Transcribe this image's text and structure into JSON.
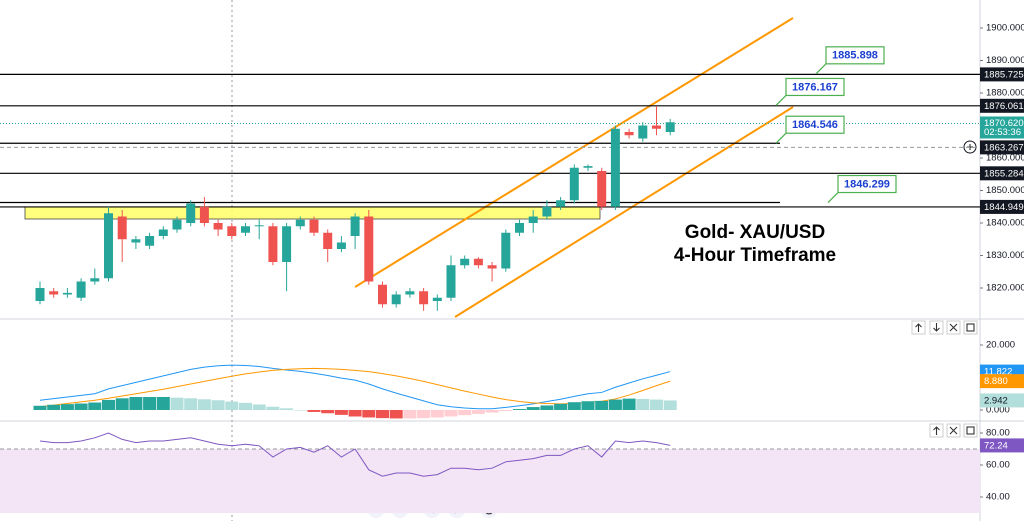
{
  "chart_data": [
    {
      "type": "candlestick",
      "open": [
        1816,
        1819,
        1818,
        1817,
        1822,
        1823,
        1842,
        1834,
        1833,
        1836,
        1838,
        1840,
        1845,
        1840,
        1839,
        1837,
        1839,
        1839,
        1828,
        1839,
        1841,
        1837,
        1832,
        1836,
        1842,
        1821,
        1815,
        1818,
        1819,
        1816,
        1817,
        1827,
        1829,
        1827,
        1826,
        1837,
        1840,
        1842,
        1845,
        1847,
        1857,
        1856,
        1845,
        1868,
        1866,
        1870,
        1868
      ],
      "high": [
        1822,
        1820,
        1820,
        1823,
        1826,
        1845,
        1844,
        1836,
        1837,
        1839,
        1842,
        1847,
        1848,
        1841,
        1840,
        1840,
        1841,
        1840,
        1840,
        1842,
        1842,
        1838,
        1836,
        1843,
        1844,
        1822,
        1819,
        1820,
        1820,
        1818,
        1830,
        1830,
        1829.5,
        1828,
        1838,
        1841,
        1844,
        1847,
        1848,
        1858,
        1858,
        1857,
        1870,
        1869,
        1871,
        1876,
        1872
      ],
      "low": [
        1815,
        1817,
        1817,
        1816,
        1821,
        1822,
        1828,
        1832,
        1832,
        1835,
        1837,
        1839,
        1839,
        1836,
        1835,
        1836,
        1835,
        1827,
        1819,
        1838,
        1836,
        1828,
        1831,
        1832,
        1821,
        1814,
        1814,
        1817,
        1813,
        1813,
        1816,
        1826,
        1826,
        1822,
        1825,
        1836,
        1837,
        1841,
        1844,
        1846,
        1856,
        1844,
        1844,
        1866,
        1865,
        1867,
        1867
      ],
      "close": [
        1820,
        1818,
        1818.5,
        1822,
        1823,
        1843,
        1835,
        1835,
        1836,
        1838,
        1841,
        1846,
        1840,
        1838,
        1836,
        1839,
        1839.3,
        1828,
        1839,
        1841,
        1837,
        1832,
        1834,
        1842,
        1822,
        1815,
        1818,
        1819,
        1815,
        1817,
        1827,
        1829,
        1827,
        1826,
        1837,
        1840,
        1842,
        1845,
        1847,
        1857,
        1857.5,
        1845,
        1869,
        1867,
        1870,
        1869,
        1871
      ],
      "up_color": "#26a69a",
      "down_color": "#ef5350",
      "ylim": [
        1810.769,
        1908.615
      ],
      "yticks": [
        {
          "value": 1900,
          "label": "1900.000"
        },
        {
          "value": 1890,
          "label": "1890.000"
        },
        {
          "value": 1880,
          "label": "1880.000"
        },
        {
          "value": 1860,
          "label": "1860.000"
        },
        {
          "value": 1850,
          "label": "1850.000"
        },
        {
          "value": 1840,
          "label": "1840.000"
        },
        {
          "value": 1830,
          "label": "1830.000"
        },
        {
          "value": 1820,
          "label": "1820.000"
        }
      ],
      "levels": [
        1885.725,
        1876.061,
        1855.284,
        1844.949
      ],
      "last_price": {
        "value": 1870.62,
        "label": "1870.620"
      },
      "countdown": "02:53:36",
      "crosshair": 1863.267,
      "callouts": [
        1885.898,
        1876.167,
        1864.546,
        1846.299
      ],
      "annotations": [
        "Gold- XAU/USD",
        "4-Hour Timeframe"
      ]
    },
    {
      "type": "macd",
      "ylim": [
        -3.08,
        27.08
      ],
      "yticks": [
        {
          "value": 20,
          "label": "20.000"
        },
        {
          "value": 0,
          "label": "0.000"
        }
      ],
      "series": [
        {
          "color": "#2196f3",
          "values": [
            3,
            3.5,
            4,
            4.5,
            5,
            6.5,
            7.5,
            8.5,
            9.5,
            10.5,
            11.5,
            12.5,
            13.2,
            13.6,
            13.8,
            13.7,
            13.4,
            12.8,
            12.3,
            11.9,
            11.3,
            10.6,
            9.8,
            9.2,
            8,
            6.5,
            5.2,
            4,
            2.8,
            1.6,
            1,
            0.6,
            0.4,
            0.4,
            0.8,
            1.3,
            1.9,
            2.6,
            3.3,
            4.2,
            5,
            5.4,
            7,
            8.3,
            9.6,
            10.7,
            11.822
          ]
        },
        {
          "color": "#ff9800",
          "values": [
            1,
            1.5,
            2,
            2.5,
            3,
            3.6,
            4.3,
            5,
            5.7,
            6.4,
            7.2,
            8,
            8.8,
            9.6,
            10.4,
            11.1,
            11.7,
            12.2,
            12.5,
            12.7,
            12.8,
            12.7,
            12.5,
            12.2,
            11.8,
            11.2,
            10.5,
            9.7,
            8.8,
            7.8,
            6.8,
            5.8,
            4.9,
            4,
            3.2,
            2.6,
            2.2,
            2,
            1.9,
            2,
            2.3,
            2.7,
            3.4,
            4.6,
            6,
            7.5,
            8.88
          ],
          "value_labels": [
            null,
            null,
            null,
            null,
            null,
            null,
            null,
            null,
            null,
            null,
            null,
            null,
            null,
            null,
            null,
            null,
            null,
            null,
            null,
            null,
            null,
            null,
            null,
            null,
            null,
            null,
            null,
            null,
            null,
            null,
            null,
            null,
            null,
            null,
            null,
            null,
            null,
            null,
            null,
            null,
            null,
            null,
            null,
            null,
            null,
            null,
            "8.880"
          ]
        },
        {
          "type": "histogram",
          "colors": [
            "#26a69a",
            "#b2dfdb",
            "#ffcdd2",
            "#ef5350"
          ],
          "values": [
            1.3,
            1.6,
            1.8,
            2,
            2.3,
            3.1,
            3.6,
            4,
            4,
            4,
            3.8,
            3.6,
            3.3,
            3,
            2.6,
            2.2,
            1.7,
            1,
            0.5,
            0,
            -0.6,
            -1,
            -1.5,
            -2,
            -2.3,
            -2.5,
            -2.6,
            -2.6,
            -2.5,
            -2.3,
            -2,
            -1.6,
            -1.2,
            -0.8,
            -0.3,
            0.3,
            0.9,
            1.4,
            1.9,
            2.4,
            2.7,
            2.8,
            3.2,
            3.5,
            3.4,
            3.2,
            2.942
          ]
        }
      ]
    },
    {
      "type": "rsi",
      "color": "#7e57c2",
      "values": [
        75,
        74,
        74,
        75,
        77,
        80,
        76,
        74,
        75,
        75,
        76,
        77,
        75,
        73,
        72,
        73,
        72,
        65,
        70,
        71,
        68,
        72,
        65,
        70,
        57,
        53,
        55,
        55,
        53,
        54,
        58,
        58,
        57,
        58,
        62,
        63,
        64,
        66,
        66,
        70,
        72,
        65,
        75,
        74,
        75,
        74,
        72.24
      ],
      "ylim": [
        25,
        86.875
      ],
      "yticks": [
        {
          "value": 80,
          "label": "80.00"
        },
        {
          "value": 60,
          "label": "60.00"
        },
        {
          "value": 40,
          "label": "40.00"
        }
      ],
      "band": [
        30,
        70
      ],
      "band_color": "#f3e5f5"
    }
  ]
}
